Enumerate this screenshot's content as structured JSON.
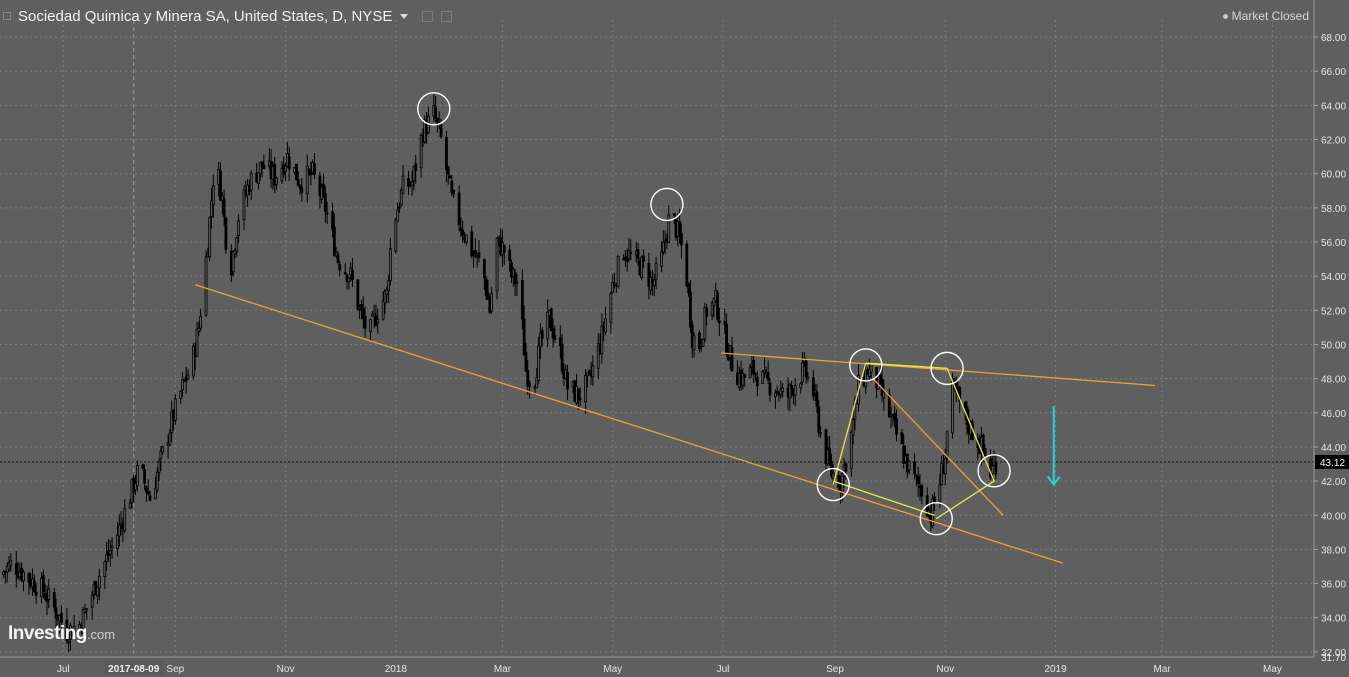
{
  "header": {
    "title": "Sociedad Quimica y Minera SA, United States, D, NYSE",
    "status": "Market Closed"
  },
  "logo": {
    "main": "Investing",
    "suffix": ".com"
  },
  "colors": {
    "background": "#5f5f5f",
    "grid": "#7c7c7c",
    "candle": "#000000",
    "trendline": "#f0a030",
    "pattern_line": "#e8e840",
    "circle": "#ffffff",
    "arrow": "#22d3e0",
    "price_label_bg": "#000000"
  },
  "chart_data": {
    "type": "candlestick",
    "instrument": "Sociedad Quimica y Minera SA",
    "exchange": "NYSE",
    "interval": "D",
    "ylim": [
      31.7,
      69.0
    ],
    "y_ticks": [
      "68.00",
      "66.00",
      "64.00",
      "62.00",
      "60.00",
      "58.00",
      "56.00",
      "54.00",
      "52.00",
      "50.00",
      "48.00",
      "46.00",
      "44.00",
      "42.00",
      "40.00",
      "38.00",
      "36.00",
      "34.00",
      "32.00"
    ],
    "x_ticks": [
      {
        "label": "Jul",
        "date": "2017-07-01"
      },
      {
        "label": "Sep",
        "date": "2017-09-01"
      },
      {
        "label": "Nov",
        "date": "2017-11-01"
      },
      {
        "label": "2018",
        "date": "2018-01-01"
      },
      {
        "label": "Mar",
        "date": "2018-03-01"
      },
      {
        "label": "May",
        "date": "2018-05-01"
      },
      {
        "label": "Jul",
        "date": "2018-07-01"
      },
      {
        "label": "Sep",
        "date": "2018-09-01"
      },
      {
        "label": "Nov",
        "date": "2018-11-01"
      },
      {
        "label": "2019",
        "date": "2019-01-01"
      },
      {
        "label": "Mar",
        "date": "2019-03-01"
      },
      {
        "label": "May",
        "date": "2019-05-01"
      }
    ],
    "x_range": [
      "2017-05-27",
      "2019-05-24"
    ],
    "crosshair": {
      "date": "2017-08-09",
      "label": "2017-08-09"
    },
    "last_price": {
      "value": 43.12,
      "label": "43.12"
    },
    "low_marker": {
      "value": 31.7,
      "label": "31.70"
    },
    "price_path": [
      [
        "2017-05-27",
        36.5
      ],
      [
        "2017-06-03",
        37.2
      ],
      [
        "2017-06-12",
        36.3
      ],
      [
        "2017-06-20",
        35.6
      ],
      [
        "2017-06-28",
        34.2
      ],
      [
        "2017-07-03",
        33.2
      ],
      [
        "2017-07-10",
        33.6
      ],
      [
        "2017-07-15",
        34.8
      ],
      [
        "2017-07-22",
        36.8
      ],
      [
        "2017-07-30",
        38.6
      ],
      [
        "2017-08-06",
        40.8
      ],
      [
        "2017-08-12",
        42.8
      ],
      [
        "2017-08-18",
        41.0
      ],
      [
        "2017-08-24",
        43.2
      ],
      [
        "2017-08-30",
        45.5
      ],
      [
        "2017-09-05",
        47.5
      ],
      [
        "2017-09-10",
        48.8
      ],
      [
        "2017-09-14",
        51.0
      ],
      [
        "2017-09-19",
        56.0
      ],
      [
        "2017-09-23",
        61.0
      ],
      [
        "2017-09-27",
        58.5
      ],
      [
        "2017-10-01",
        54.0
      ],
      [
        "2017-10-06",
        57.5
      ],
      [
        "2017-10-12",
        59.5
      ],
      [
        "2017-10-19",
        60.5
      ],
      [
        "2017-10-26",
        59.8
      ],
      [
        "2017-11-02",
        61.0
      ],
      [
        "2017-11-09",
        59.5
      ],
      [
        "2017-11-16",
        60.0
      ],
      [
        "2017-11-23",
        58.0
      ],
      [
        "2017-11-30",
        55.0
      ],
      [
        "2017-12-07",
        54.0
      ],
      [
        "2017-12-12",
        52.0
      ],
      [
        "2017-12-17",
        50.5
      ],
      [
        "2017-12-22",
        52.0
      ],
      [
        "2017-12-27",
        53.0
      ],
      [
        "2017-12-30",
        56.8
      ],
      [
        "2018-01-05",
        59.2
      ],
      [
        "2018-01-10",
        59.5
      ],
      [
        "2018-01-16",
        62.5
      ],
      [
        "2018-01-22",
        63.5
      ],
      [
        "2018-01-26",
        62.0
      ],
      [
        "2018-02-01",
        58.5
      ],
      [
        "2018-02-06",
        57.0
      ],
      [
        "2018-02-12",
        55.5
      ],
      [
        "2018-02-18",
        54.5
      ],
      [
        "2018-02-22",
        52.0
      ],
      [
        "2018-02-26",
        56.0
      ],
      [
        "2018-03-02",
        55.5
      ],
      [
        "2018-03-06",
        54.0
      ],
      [
        "2018-03-10",
        53.5
      ],
      [
        "2018-03-14",
        48.5
      ],
      [
        "2018-03-18",
        47.5
      ],
      [
        "2018-03-22",
        50.0
      ],
      [
        "2018-03-27",
        51.5
      ],
      [
        "2018-04-02",
        49.5
      ],
      [
        "2018-04-06",
        47.5
      ],
      [
        "2018-04-12",
        47.0
      ],
      [
        "2018-04-18",
        47.8
      ],
      [
        "2018-04-25",
        50.5
      ],
      [
        "2018-05-01",
        53.5
      ],
      [
        "2018-05-07",
        55.5
      ],
      [
        "2018-05-12",
        55.0
      ],
      [
        "2018-05-18",
        54.5
      ],
      [
        "2018-05-23",
        53.5
      ],
      [
        "2018-05-28",
        55.0
      ],
      [
        "2018-06-02",
        57.8
      ],
      [
        "2018-06-06",
        56.5
      ],
      [
        "2018-06-10",
        55.0
      ],
      [
        "2018-06-14",
        50.5
      ],
      [
        "2018-06-18",
        50.0
      ],
      [
        "2018-06-22",
        52.0
      ],
      [
        "2018-06-27",
        52.5
      ],
      [
        "2018-07-02",
        50.5
      ],
      [
        "2018-07-07",
        48.5
      ],
      [
        "2018-07-12",
        48.0
      ],
      [
        "2018-07-18",
        48.5
      ],
      [
        "2018-07-24",
        47.8
      ],
      [
        "2018-07-30",
        47.5
      ],
      [
        "2018-08-05",
        46.8
      ],
      [
        "2018-08-10",
        47.8
      ],
      [
        "2018-08-15",
        48.5
      ],
      [
        "2018-08-20",
        47.2
      ],
      [
        "2018-08-25",
        44.2
      ],
      [
        "2018-08-30",
        42.5
      ],
      [
        "2018-09-04",
        42.0
      ],
      [
        "2018-09-09",
        44.0
      ],
      [
        "2018-09-14",
        47.5
      ],
      [
        "2018-09-19",
        48.5
      ],
      [
        "2018-09-24",
        47.8
      ],
      [
        "2018-09-29",
        46.5
      ],
      [
        "2018-10-04",
        45.0
      ],
      [
        "2018-10-09",
        43.5
      ],
      [
        "2018-10-14",
        42.2
      ],
      [
        "2018-10-19",
        41.5
      ],
      [
        "2018-10-24",
        40.0
      ],
      [
        "2018-10-28",
        41.5
      ],
      [
        "2018-11-01",
        43.5
      ],
      [
        "2018-11-04",
        47.5
      ],
      [
        "2018-11-08",
        46.8
      ],
      [
        "2018-11-13",
        45.5
      ],
      [
        "2018-11-18",
        44.5
      ],
      [
        "2018-11-22",
        43.8
      ],
      [
        "2018-11-26",
        42.5
      ],
      [
        "2018-11-29",
        43.12
      ]
    ],
    "annotations": {
      "trendlines": [
        {
          "color": "orange",
          "from": [
            "2017-09-12",
            53.5
          ],
          "to": [
            "2019-01-05",
            37.2
          ]
        },
        {
          "color": "orange",
          "from": [
            "2018-06-30",
            49.5
          ],
          "to": [
            "2019-02-25",
            47.6
          ]
        },
        {
          "color": "orange",
          "from": [
            "2018-09-22",
            48.0
          ],
          "to": [
            "2018-12-03",
            40.0
          ]
        },
        {
          "color": "yellow",
          "from": [
            "2018-08-31",
            42.0
          ],
          "to": [
            "2018-10-26",
            40.0
          ]
        },
        {
          "color": "yellow",
          "from": [
            "2018-09-19",
            48.9
          ],
          "to": [
            "2018-11-02",
            48.6
          ]
        },
        {
          "color": "yellow",
          "path": [
            [
              "2018-08-31",
              41.8
            ],
            [
              "2018-09-18",
              48.9
            ],
            [
              "2018-11-02",
              48.6
            ],
            [
              "2018-11-28",
              42.0
            ],
            [
              "2018-10-27",
              39.8
            ]
          ]
        }
      ],
      "circles": [
        [
          "2018-01-22",
          63.8
        ],
        [
          "2018-05-31",
          58.2
        ],
        [
          "2018-08-31",
          41.8
        ],
        [
          "2018-09-18",
          48.8
        ],
        [
          "2018-10-27",
          39.8
        ],
        [
          "2018-11-02",
          48.6
        ],
        [
          "2018-11-28",
          42.6
        ]
      ],
      "arrow": {
        "date": "2018-12-31",
        "from": 46.4,
        "to": 41.8,
        "direction": "down"
      }
    }
  }
}
